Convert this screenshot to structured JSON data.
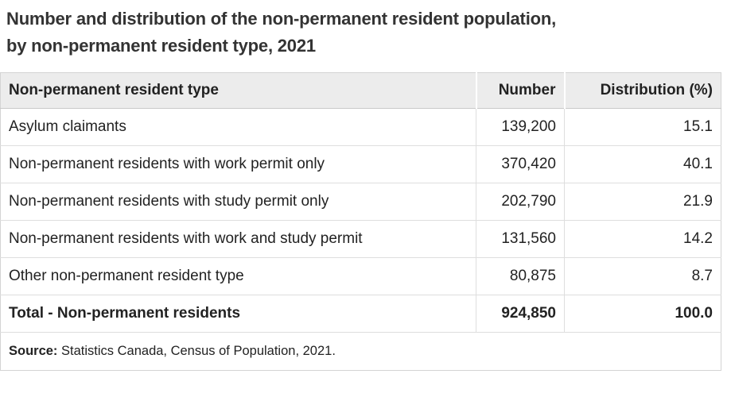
{
  "title": {
    "line1": "Number and distribution of the non-permanent resident population,",
    "line2": "by non-permanent resident type, 2021"
  },
  "table": {
    "columns": [
      "Non-permanent resident type",
      "Number",
      "Distribution (%)"
    ],
    "rows": [
      {
        "type": "Asylum claimants",
        "number": "139,200",
        "distribution": "15.1"
      },
      {
        "type": "Non-permanent residents with work permit only",
        "number": "370,420",
        "distribution": "40.1"
      },
      {
        "type": "Non-permanent residents with study permit only",
        "number": "202,790",
        "distribution": "21.9"
      },
      {
        "type": "Non-permanent residents with work and study permit",
        "number": "131,560",
        "distribution": "14.2"
      },
      {
        "type": "Other non-permanent resident type",
        "number": "80,875",
        "distribution": "8.7"
      }
    ],
    "total": {
      "type": "Total - Non-permanent residents",
      "number": "924,850",
      "distribution": "100.0"
    },
    "source_label": "Source:",
    "source_text": " Statistics Canada, Census of Population, 2021."
  },
  "colors": {
    "title_text": "#333333",
    "body_text": "#222222",
    "header_background": "#ececec",
    "row_border": "#dedede",
    "header_bottom_border": "#c9c9c9",
    "outer_border": "#d4d4d4"
  },
  "chart_data": {
    "type": "table",
    "title": "Number and distribution of the non-permanent resident population, by non-permanent resident type, 2021",
    "columns": [
      "Non-permanent resident type",
      "Number",
      "Distribution (%)"
    ],
    "rows": [
      [
        "Asylum claimants",
        139200,
        15.1
      ],
      [
        "Non-permanent residents with work permit only",
        370420,
        40.1
      ],
      [
        "Non-permanent residents with study permit only",
        202790,
        21.9
      ],
      [
        "Non-permanent residents with work and study permit",
        131560,
        14.2
      ],
      [
        "Other non-permanent resident type",
        80875,
        8.7
      ]
    ],
    "total": [
      "Total - Non-permanent residents",
      924850,
      100.0
    ],
    "source": "Statistics Canada, Census of Population, 2021"
  }
}
